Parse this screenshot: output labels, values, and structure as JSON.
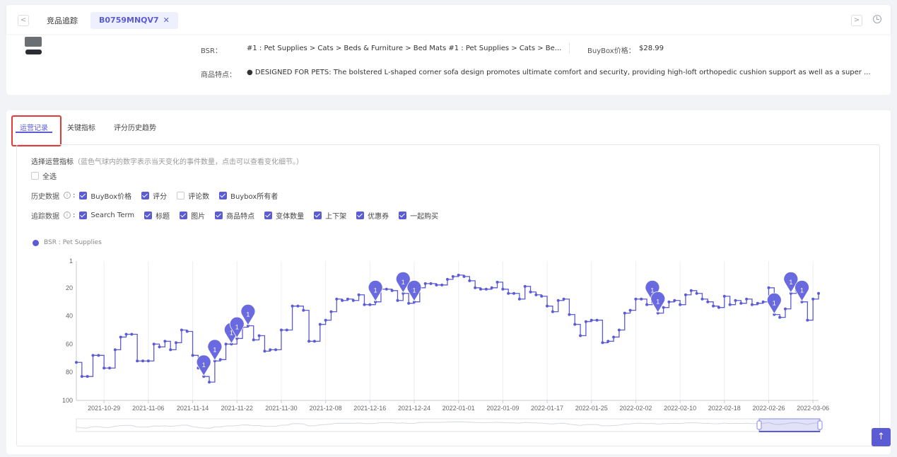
{
  "topbar": {
    "back_glyph": "<",
    "forward_glyph": ">",
    "tab_plain": "竞品追踪",
    "tab_active": "B0759MNQV7",
    "tab_close": "✕",
    "history_icon": "clock-icon"
  },
  "product": {
    "bsr_label": "BSR：",
    "bsr_value": "#1 : Pet Supplies > Cats > Beds & Furniture > Bed Mats #1 : Pet Supplies > Cats > Be...",
    "buybox_label": "BuyBox价格：",
    "buybox_value": "$28.99",
    "features_label": "商品特点：",
    "features_value": "● DESIGNED FOR PETS: The bolstered L-shaped corner sofa design promotes ultimate comfort and security, providing high-loft orthopedic cushion support as well as a super ..."
  },
  "tabs": [
    "运营记录",
    "关键指标",
    "评分历史趋势"
  ],
  "select": {
    "title": "选择运营指标",
    "hint": "（蓝色气球内的数字表示当天变化的事件数量，点击可以查看变化细节。）",
    "select_all": "全选"
  },
  "history": {
    "label": "历史数据",
    "items": [
      {
        "label": "BuyBox价格",
        "checked": true
      },
      {
        "label": "评分",
        "checked": true
      },
      {
        "label": "评论数",
        "checked": false
      },
      {
        "label": "Buybox所有者",
        "checked": true
      }
    ]
  },
  "tracking": {
    "label": "追踪数据",
    "items": [
      {
        "label": "Search Term",
        "checked": true
      },
      {
        "label": "标题",
        "checked": true
      },
      {
        "label": "图片",
        "checked": true
      },
      {
        "label": "商品特点",
        "checked": true
      },
      {
        "label": "变体数量",
        "checked": true
      },
      {
        "label": "上下架",
        "checked": true
      },
      {
        "label": "优惠券",
        "checked": true
      },
      {
        "label": "一起购买",
        "checked": true
      }
    ]
  },
  "colors": {
    "accent": "#5b5bd6",
    "highlight": "#e53935"
  },
  "chart_data": {
    "type": "line",
    "series": [
      {
        "name": "BSR : Pet Supplies",
        "step": true,
        "points": [
          [
            "2021-10-24",
            73
          ],
          [
            "2021-10-25",
            83
          ],
          [
            "2021-10-26",
            83
          ],
          [
            "2021-10-27",
            68
          ],
          [
            "2021-10-28",
            68
          ],
          [
            "2021-10-29",
            77
          ],
          [
            "2021-10-30",
            77
          ],
          [
            "2021-10-31",
            64
          ],
          [
            "2021-11-01",
            55
          ],
          [
            "2021-11-02",
            53
          ],
          [
            "2021-11-03",
            53
          ],
          [
            "2021-11-04",
            72
          ],
          [
            "2021-11-05",
            72
          ],
          [
            "2021-11-06",
            72
          ],
          [
            "2021-11-07",
            60
          ],
          [
            "2021-11-08",
            62
          ],
          [
            "2021-11-09",
            58
          ],
          [
            "2021-11-10",
            64
          ],
          [
            "2021-11-11",
            59
          ],
          [
            "2021-11-12",
            50
          ],
          [
            "2021-11-13",
            51
          ],
          [
            "2021-11-14",
            68
          ],
          [
            "2021-11-15",
            77
          ],
          [
            "2021-11-16",
            83
          ],
          [
            "2021-11-17",
            87
          ],
          [
            "2021-11-18",
            72
          ],
          [
            "2021-11-19",
            71
          ],
          [
            "2021-11-20",
            60
          ],
          [
            "2021-11-21",
            60
          ],
          [
            "2021-11-22",
            56
          ],
          [
            "2021-11-23",
            48
          ],
          [
            "2021-11-24",
            47
          ],
          [
            "2021-11-25",
            57
          ],
          [
            "2021-11-26",
            54
          ],
          [
            "2021-11-27",
            65
          ],
          [
            "2021-11-28",
            64
          ],
          [
            "2021-11-29",
            64
          ],
          [
            "2021-11-30",
            50
          ],
          [
            "2021-12-01",
            50
          ],
          [
            "2021-12-02",
            33
          ],
          [
            "2021-12-03",
            33
          ],
          [
            "2021-12-04",
            36
          ],
          [
            "2021-12-05",
            58
          ],
          [
            "2021-12-06",
            58
          ],
          [
            "2021-12-07",
            46
          ],
          [
            "2021-12-08",
            43
          ],
          [
            "2021-12-09",
            37
          ],
          [
            "2021-12-10",
            28
          ],
          [
            "2021-12-11",
            29
          ],
          [
            "2021-12-12",
            28
          ],
          [
            "2021-12-13",
            29
          ],
          [
            "2021-12-14",
            25
          ],
          [
            "2021-12-15",
            32
          ],
          [
            "2021-12-16",
            32
          ],
          [
            "2021-12-17",
            30
          ],
          [
            "2021-12-18",
            21
          ],
          [
            "2021-12-19",
            21
          ],
          [
            "2021-12-20",
            22
          ],
          [
            "2021-12-21",
            29
          ],
          [
            "2021-12-22",
            24
          ],
          [
            "2021-12-23",
            31
          ],
          [
            "2021-12-24",
            30
          ],
          [
            "2021-12-25",
            20
          ],
          [
            "2021-12-26",
            17
          ],
          [
            "2021-12-27",
            17
          ],
          [
            "2021-12-28",
            18
          ],
          [
            "2021-12-29",
            18
          ],
          [
            "2021-12-30",
            14
          ],
          [
            "2021-12-31",
            12
          ],
          [
            "2022-01-01",
            11
          ],
          [
            "2022-01-02",
            12
          ],
          [
            "2022-01-03",
            15
          ],
          [
            "2022-01-04",
            20
          ],
          [
            "2022-01-05",
            21
          ],
          [
            "2022-01-06",
            21
          ],
          [
            "2022-01-07",
            20
          ],
          [
            "2022-01-08",
            16
          ],
          [
            "2022-01-09",
            21
          ],
          [
            "2022-01-10",
            24
          ],
          [
            "2022-01-11",
            24
          ],
          [
            "2022-01-12",
            28
          ],
          [
            "2022-01-13",
            19
          ],
          [
            "2022-01-14",
            23
          ],
          [
            "2022-01-15",
            25
          ],
          [
            "2022-01-16",
            26
          ],
          [
            "2022-01-17",
            33
          ],
          [
            "2022-01-18",
            37
          ],
          [
            "2022-01-19",
            29
          ],
          [
            "2022-01-20",
            28
          ],
          [
            "2022-01-21",
            39
          ],
          [
            "2022-01-22",
            46
          ],
          [
            "2022-01-23",
            54
          ],
          [
            "2022-01-24",
            44
          ],
          [
            "2022-01-25",
            43
          ],
          [
            "2022-01-26",
            43
          ],
          [
            "2022-01-27",
            59
          ],
          [
            "2022-01-28",
            58
          ],
          [
            "2022-01-29",
            55
          ],
          [
            "2022-01-30",
            50
          ],
          [
            "2022-01-31",
            38
          ],
          [
            "2022-02-01",
            36
          ],
          [
            "2022-02-02",
            28
          ],
          [
            "2022-02-03",
            28
          ],
          [
            "2022-02-04",
            32
          ],
          [
            "2022-02-05",
            30
          ],
          [
            "2022-02-06",
            38
          ],
          [
            "2022-02-07",
            34
          ],
          [
            "2022-02-08",
            30
          ],
          [
            "2022-02-09",
            29
          ],
          [
            "2022-02-10",
            32
          ],
          [
            "2022-02-11",
            25
          ],
          [
            "2022-02-12",
            22
          ],
          [
            "2022-02-13",
            24
          ],
          [
            "2022-02-14",
            28
          ],
          [
            "2022-02-15",
            30
          ],
          [
            "2022-02-16",
            33
          ],
          [
            "2022-02-17",
            34
          ],
          [
            "2022-02-18",
            26
          ],
          [
            "2022-02-19",
            32
          ],
          [
            "2022-02-20",
            29
          ],
          [
            "2022-02-21",
            31
          ],
          [
            "2022-02-22",
            28
          ],
          [
            "2022-02-23",
            32
          ],
          [
            "2022-02-24",
            31
          ],
          [
            "2022-02-25",
            30
          ],
          [
            "2022-02-26",
            20
          ],
          [
            "2022-02-27",
            39
          ],
          [
            "2022-02-28",
            41
          ],
          [
            "2022-03-01",
            35
          ],
          [
            "2022-03-02",
            24
          ],
          [
            "2022-03-03",
            22
          ],
          [
            "2022-03-04",
            30
          ],
          [
            "2022-03-05",
            43
          ],
          [
            "2022-03-06",
            28
          ],
          [
            "2022-03-07",
            24
          ]
        ]
      }
    ],
    "events": [
      {
        "date": "2021-11-16",
        "count": "1"
      },
      {
        "date": "2021-11-18",
        "count": "1"
      },
      {
        "date": "2021-11-21",
        "count": "1"
      },
      {
        "date": "2021-11-22",
        "count": "1"
      },
      {
        "date": "2021-11-24",
        "count": "1"
      },
      {
        "date": "2021-12-17",
        "count": "1"
      },
      {
        "date": "2021-12-22",
        "count": "1"
      },
      {
        "date": "2021-12-24",
        "count": "1"
      },
      {
        "date": "2022-02-05",
        "count": "1"
      },
      {
        "date": "2022-02-06",
        "count": "1"
      },
      {
        "date": "2022-02-27",
        "count": "1"
      },
      {
        "date": "2022-03-02",
        "count": "1"
      },
      {
        "date": "2022-03-04",
        "count": "1"
      }
    ],
    "x_ticks": [
      "2021-10-29",
      "2021-11-06",
      "2021-11-14",
      "2021-11-22",
      "2021-11-30",
      "2021-12-08",
      "2021-12-16",
      "2021-12-24",
      "2022-01-01",
      "2022-01-09",
      "2022-01-17",
      "2022-01-25",
      "2022-02-02",
      "2022-02-10",
      "2022-02-18",
      "2022-02-26",
      "2022-03-06"
    ],
    "y_ticks": [
      1,
      20,
      40,
      60,
      80,
      100
    ],
    "ylim": [
      1,
      100
    ],
    "y_inverted": true,
    "grid": "vertical",
    "legend": "top-left",
    "color": "#5b5bd6"
  }
}
